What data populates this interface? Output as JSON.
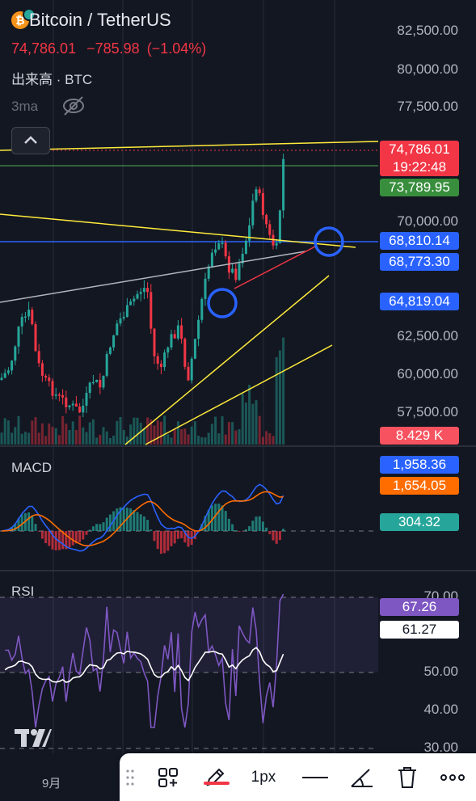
{
  "header": {
    "title": "Bitcoin / TetherUS",
    "coin_glyph": "₿",
    "price": "74,786.01",
    "change": "−785.98",
    "change_pct": "(−1.04%)",
    "volume_label": "出来高 · BTC",
    "ma_label": "3ma"
  },
  "price_scale": {
    "labels": [
      "82,500.00",
      "80,000.00",
      "77,500.00",
      "70,000.00",
      "62,500.00",
      "60,000.00",
      "57,500.00"
    ]
  },
  "price_tags": {
    "current": "74,786.01",
    "countdown": "19:22:48",
    "green_line": "73,789.95",
    "blue_1": "68,810.14",
    "blue_2": "68,773.30",
    "blue_3": "64,819.04",
    "volume": "8.429 K"
  },
  "macd": {
    "label": "MACD",
    "macd_value": "1,958.36",
    "signal_value": "1,654.05",
    "hist_value": "304.32"
  },
  "rsi": {
    "label": "RSI",
    "scale": [
      "70.00",
      "50.00",
      "40.00",
      "30.00"
    ],
    "rsi_value": "67.26",
    "ma_value": "61.27"
  },
  "x_axis": {
    "month_label": "9月"
  },
  "toolbar": {
    "icons": [
      "drag-handle-icon",
      "templates-icon",
      "pencil-icon",
      "line-style-icon",
      "angle-icon",
      "trash-icon",
      "more-icon"
    ],
    "width_label": "1px"
  },
  "colors": {
    "background": "#131722",
    "up": "#26a69a",
    "down": "#f23645",
    "accent_blue": "#2962ff",
    "trend_yellow": "#ffeb3b"
  }
}
